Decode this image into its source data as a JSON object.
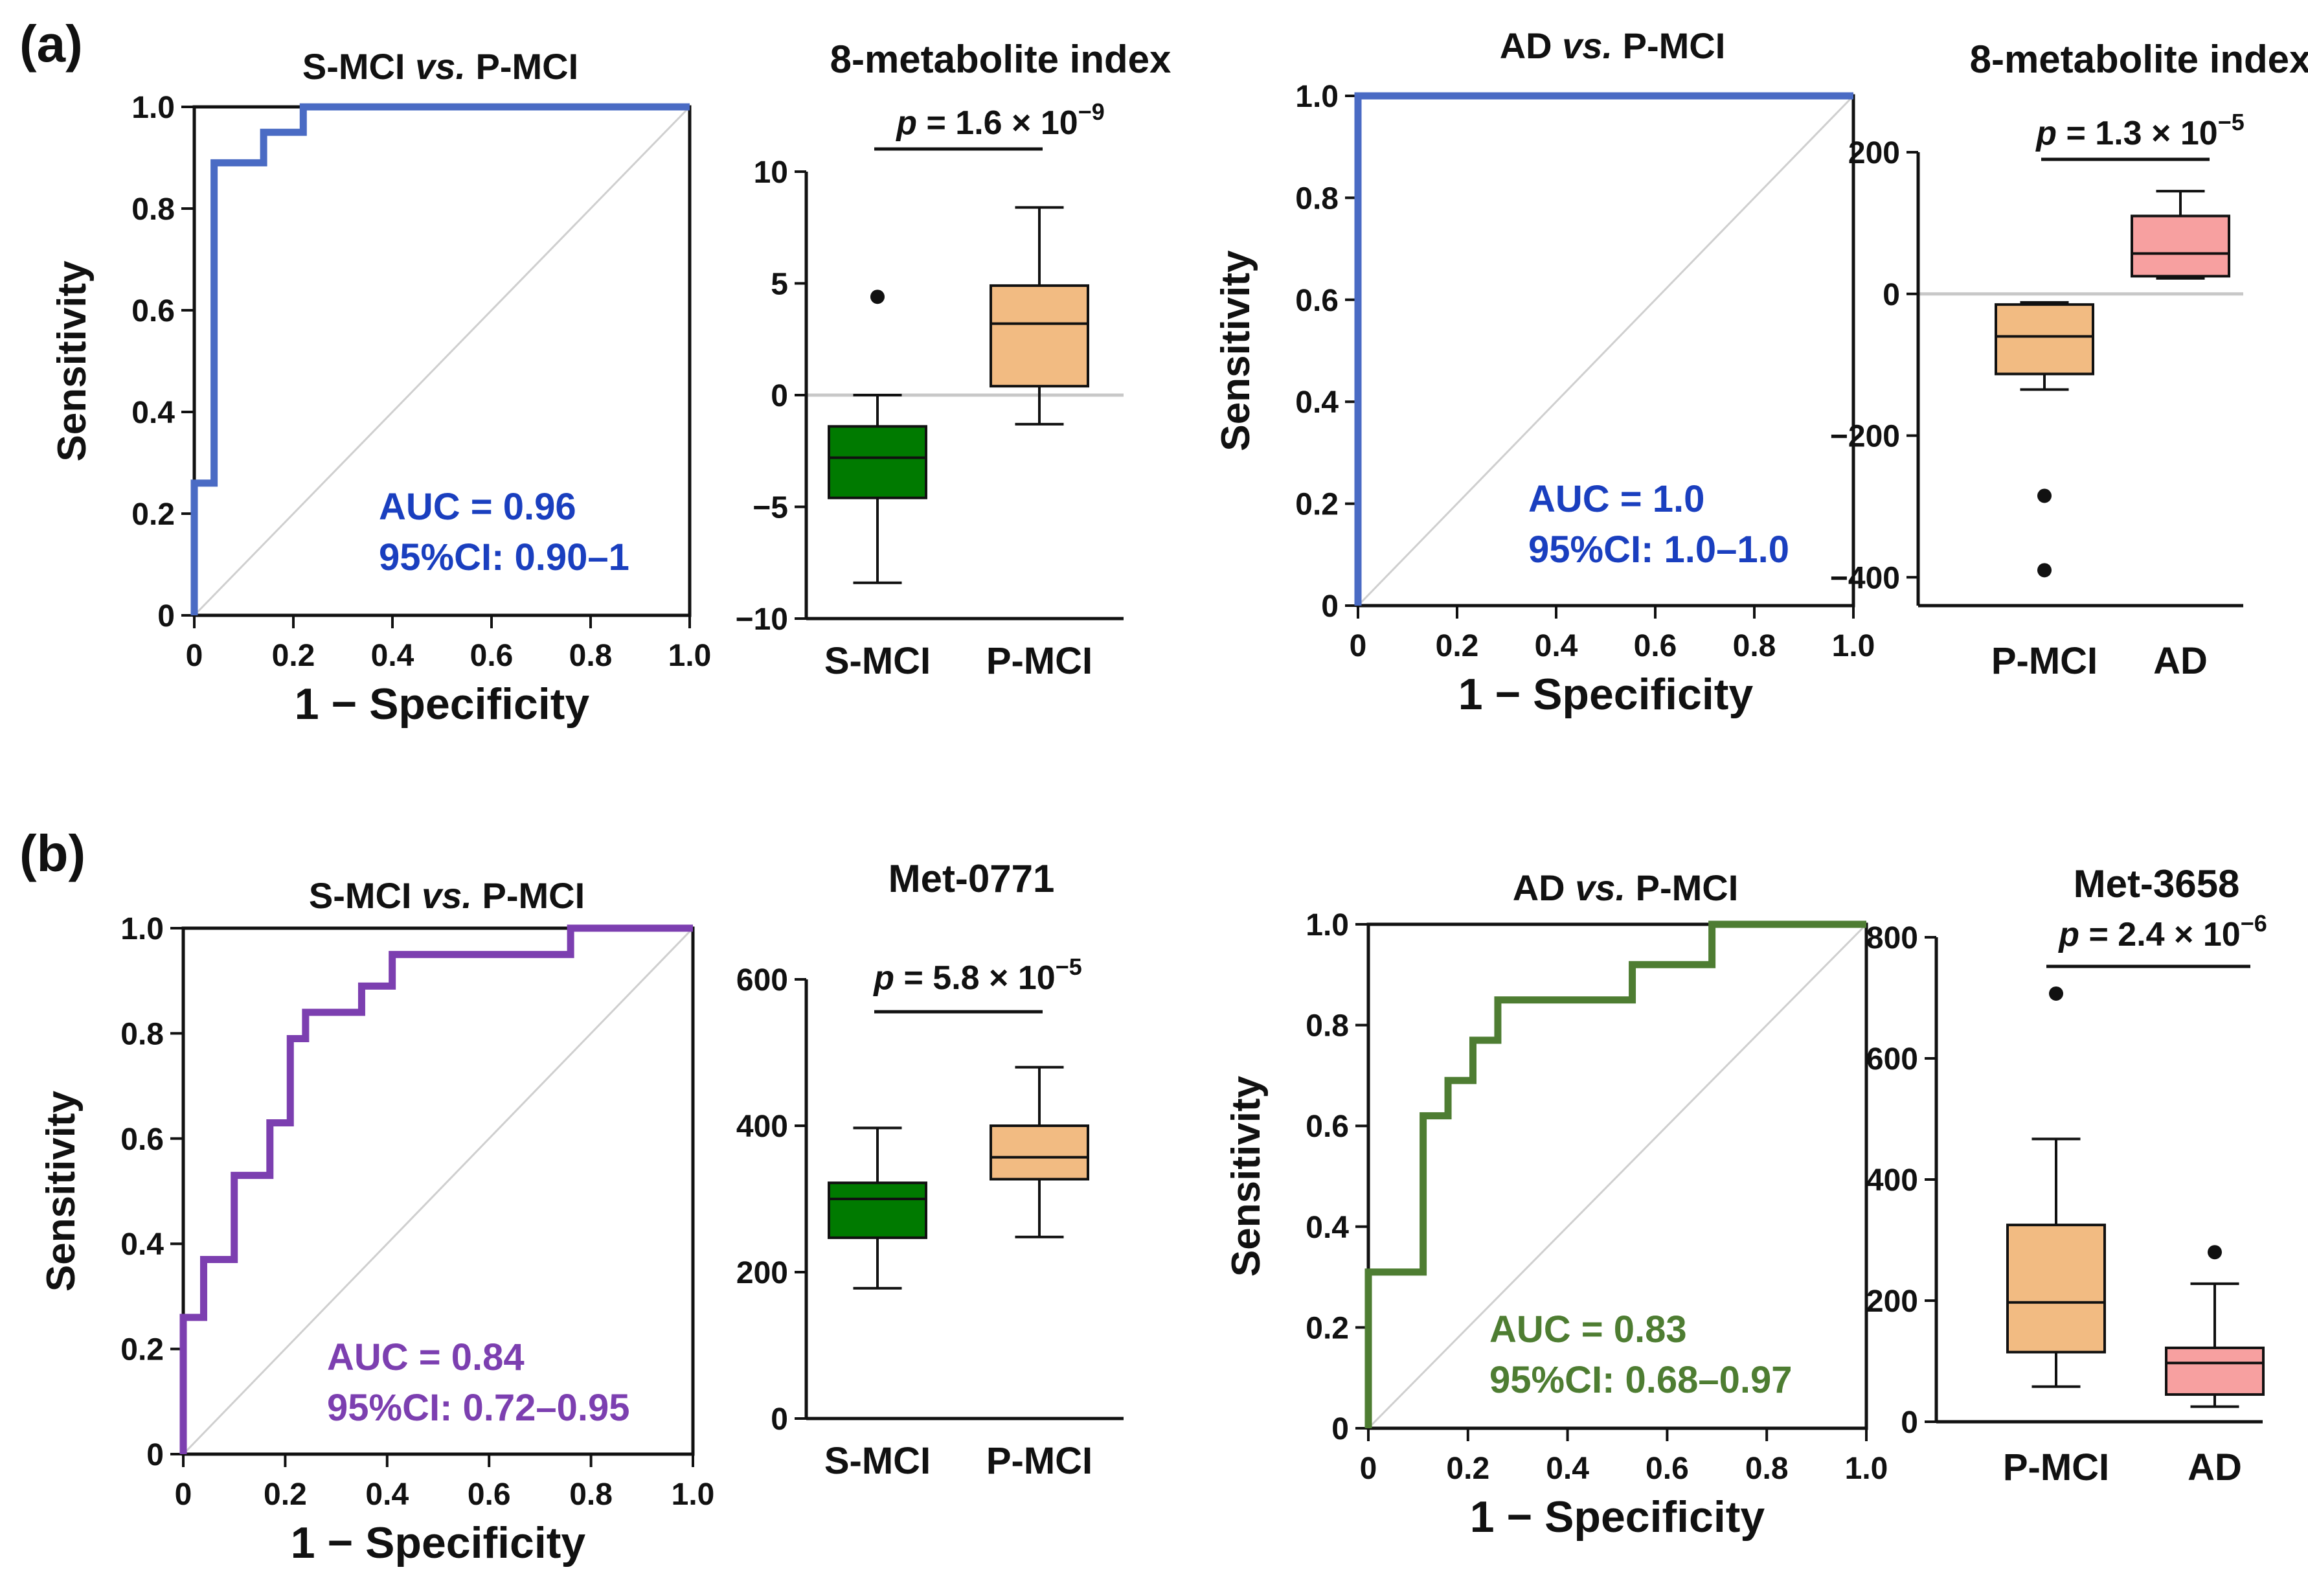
{
  "figure": {
    "panel_labels": [
      "(a)",
      "(b)"
    ]
  },
  "colors": {
    "roc_blue": "#4a6bc4",
    "roc_purple": "#7c3fb0",
    "roc_green": "#4e7d32",
    "auc_blue": "#1a3fbf",
    "auc_purple": "#7c3fb0",
    "auc_green": "#4e7d32",
    "auc_blue_dash": "#1a3fbf",
    "box_green": "#007a00",
    "box_orange": "#f2bb82",
    "box_pink": "#f7a0a0"
  },
  "chart_data": [
    {
      "id": "roc_a1",
      "type": "line",
      "title": "S-MCI vs. P-MCI",
      "title_parts": [
        "S-MCI ",
        "vs.",
        " P-MCI"
      ],
      "xlabel": "1 − Specificity",
      "ylabel": "Sensitivity",
      "xlim": [
        0,
        1
      ],
      "ylim": [
        0,
        1
      ],
      "xticks": [
        "0",
        "0.2",
        "0.4",
        "0.6",
        "0.8",
        "1.0"
      ],
      "yticks": [
        "0",
        "0.2",
        "0.4",
        "0.6",
        "0.8",
        "1.0"
      ],
      "series": [
        {
          "name": "ROC",
          "x": [
            0,
            0,
            0.04,
            0.04,
            0.14,
            0.14,
            0.22,
            0.22,
            1.0
          ],
          "y": [
            0,
            0.26,
            0.26,
            0.89,
            0.89,
            0.95,
            0.95,
            1.0,
            1.0
          ]
        }
      ],
      "annotation_line1": "AUC = 0.96",
      "annotation_line2": "95%CI: 0.90–1",
      "line_color": "roc_blue",
      "text_color": "auc_blue"
    },
    {
      "id": "box_a1",
      "type": "box",
      "title": "8-metabolite index",
      "categories": [
        "S-MCI",
        "P-MCI"
      ],
      "ylim": [
        -10,
        10
      ],
      "yticks": [
        {
          "value": 10,
          "label": "10"
        },
        {
          "value": 5,
          "label": "5"
        },
        {
          "value": 0,
          "label": "0"
        },
        {
          "value": -5,
          "label": "−5"
        },
        {
          "value": -10,
          "label": "−10"
        }
      ],
      "zero_line": 0,
      "p_value": {
        "prefix": "p",
        "text": " = 1.6 × 10",
        "exp": "−9"
      },
      "boxes": [
        {
          "name": "S-MCI",
          "min": -8.4,
          "q1": -4.6,
          "median": -2.8,
          "q3": -1.4,
          "max": 0.0,
          "outliers": [
            4.4
          ],
          "color": "box_green"
        },
        {
          "name": "P-MCI",
          "min": -1.3,
          "q1": 0.4,
          "median": 3.2,
          "q3": 4.9,
          "max": 8.4,
          "outliers": [],
          "color": "box_orange"
        }
      ]
    },
    {
      "id": "roc_a2",
      "type": "line",
      "title": "AD vs. P-MCI",
      "title_parts": [
        "AD ",
        "vs.",
        " P-MCI"
      ],
      "xlabel": "1 − Specificity",
      "ylabel": "Sensitivity",
      "xlim": [
        0,
        1
      ],
      "ylim": [
        0,
        1
      ],
      "xticks": [
        "0",
        "0.2",
        "0.4",
        "0.6",
        "0.8",
        "1.0"
      ],
      "yticks": [
        "0",
        "0.2",
        "0.4",
        "0.6",
        "0.8",
        "1.0"
      ],
      "series": [
        {
          "name": "ROC",
          "x": [
            0,
            0,
            1.0
          ],
          "y": [
            0,
            1.0,
            1.0
          ]
        }
      ],
      "annotation_line1": "AUC = 1.0",
      "annotation_line2": "95%CI: 1.0–1.0",
      "line_color": "roc_blue",
      "text_color": "auc_blue"
    },
    {
      "id": "box_a2",
      "type": "box",
      "title": "8-metabolite index",
      "categories": [
        "P-MCI",
        "AD"
      ],
      "ylim": [
        -440,
        200
      ],
      "yticks": [
        {
          "value": 200,
          "label": "200"
        },
        {
          "value": 0,
          "label": "0"
        },
        {
          "value": -200,
          "label": "−200"
        },
        {
          "value": -400,
          "label": "−400"
        }
      ],
      "zero_line": 0,
      "p_value": {
        "prefix": "p",
        "text": " = 1.3 × 10",
        "exp": "−5"
      },
      "boxes": [
        {
          "name": "P-MCI",
          "min": -135,
          "q1": -113,
          "median": -60,
          "q3": -15,
          "max": -12,
          "outliers": [
            -285,
            -390
          ],
          "color": "box_orange"
        },
        {
          "name": "AD",
          "min": 22,
          "q1": 25,
          "median": 57,
          "q3": 110,
          "max": 145,
          "outliers": [],
          "color": "box_pink"
        }
      ]
    },
    {
      "id": "roc_b1",
      "type": "line",
      "title": "S-MCI vs. P-MCI",
      "title_parts": [
        "S-MCI ",
        "vs.",
        " P-MCI"
      ],
      "xlabel": "1 − Specificity",
      "ylabel": "Sensitivity",
      "xlim": [
        0,
        1
      ],
      "ylim": [
        0,
        1
      ],
      "xticks": [
        "0",
        "0.2",
        "0.4",
        "0.6",
        "0.8",
        "1.0"
      ],
      "yticks": [
        "0",
        "0.2",
        "0.4",
        "0.6",
        "0.8",
        "1.0"
      ],
      "series": [
        {
          "name": "ROC",
          "x": [
            0,
            0,
            0.04,
            0.04,
            0.1,
            0.1,
            0.17,
            0.17,
            0.21,
            0.21,
            0.24,
            0.24,
            0.35,
            0.35,
            0.41,
            0.41,
            0.76,
            0.76,
            1.0
          ],
          "y": [
            0,
            0.26,
            0.26,
            0.37,
            0.37,
            0.53,
            0.53,
            0.63,
            0.63,
            0.79,
            0.79,
            0.84,
            0.84,
            0.89,
            0.89,
            0.95,
            0.95,
            1.0,
            1.0
          ]
        }
      ],
      "annotation_line1": "AUC = 0.84",
      "annotation_line2": "95%CI: 0.72–0.95",
      "line_color": "roc_purple",
      "text_color": "auc_purple"
    },
    {
      "id": "box_b1",
      "type": "box",
      "title": "Met-0771",
      "categories": [
        "S-MCI",
        "P-MCI"
      ],
      "ylim": [
        0,
        600
      ],
      "yticks": [
        {
          "value": 600,
          "label": "600"
        },
        {
          "value": 400,
          "label": "400"
        },
        {
          "value": 200,
          "label": "200"
        },
        {
          "value": 0,
          "label": "0"
        }
      ],
      "zero_line": null,
      "p_value": {
        "prefix": "p",
        "text": " = 5.8 × 10",
        "exp": "−5"
      },
      "boxes": [
        {
          "name": "S-MCI",
          "min": 178,
          "q1": 247,
          "median": 300,
          "q3": 322,
          "max": 397,
          "outliers": [],
          "color": "box_green"
        },
        {
          "name": "P-MCI",
          "min": 248,
          "q1": 327,
          "median": 357,
          "q3": 400,
          "max": 480,
          "outliers": [],
          "color": "box_orange"
        }
      ]
    },
    {
      "id": "roc_b2",
      "type": "line",
      "title": "AD vs. P-MCI",
      "title_parts": [
        "AD ",
        "vs.",
        " P-MCI"
      ],
      "xlabel": "1 − Specificity",
      "ylabel": "Sensitivity",
      "xlim": [
        0,
        1
      ],
      "ylim": [
        0,
        1
      ],
      "xticks": [
        "0",
        "0.2",
        "0.4",
        "0.6",
        "0.8",
        "1.0"
      ],
      "yticks": [
        "0",
        "0.2",
        "0.4",
        "0.6",
        "0.8",
        "1.0"
      ],
      "series": [
        {
          "name": "ROC",
          "x": [
            0,
            0,
            0.11,
            0.11,
            0.16,
            0.16,
            0.21,
            0.21,
            0.26,
            0.26,
            0.53,
            0.53,
            0.69,
            0.69,
            1.0
          ],
          "y": [
            0,
            0.31,
            0.31,
            0.62,
            0.62,
            0.69,
            0.69,
            0.77,
            0.77,
            0.85,
            0.85,
            0.92,
            0.92,
            1.0,
            1.0
          ]
        }
      ],
      "annotation_line1": "AUC = 0.83",
      "annotation_line2": "95%CI: 0.68–0.97",
      "line_color": "roc_green",
      "text_color": "auc_green"
    },
    {
      "id": "box_b2",
      "type": "box",
      "title": "Met-3658",
      "categories": [
        "P-MCI",
        "AD"
      ],
      "ylim": [
        0,
        800
      ],
      "yticks": [
        {
          "value": 800,
          "label": "800"
        },
        {
          "value": 600,
          "label": "600"
        },
        {
          "value": 400,
          "label": "400"
        },
        {
          "value": 200,
          "label": "200"
        },
        {
          "value": 0,
          "label": "0"
        }
      ],
      "zero_line": null,
      "p_value": {
        "prefix": "p",
        "text": " = 2.4 × 10",
        "exp": "−6"
      },
      "boxes": [
        {
          "name": "P-MCI",
          "min": 58,
          "q1": 115,
          "median": 197,
          "q3": 325,
          "max": 467,
          "outliers": [
            707
          ],
          "color": "box_orange"
        },
        {
          "name": "AD",
          "min": 25,
          "q1": 45,
          "median": 97,
          "q3": 122,
          "max": 228,
          "outliers": [
            280
          ],
          "color": "box_pink"
        }
      ]
    }
  ]
}
